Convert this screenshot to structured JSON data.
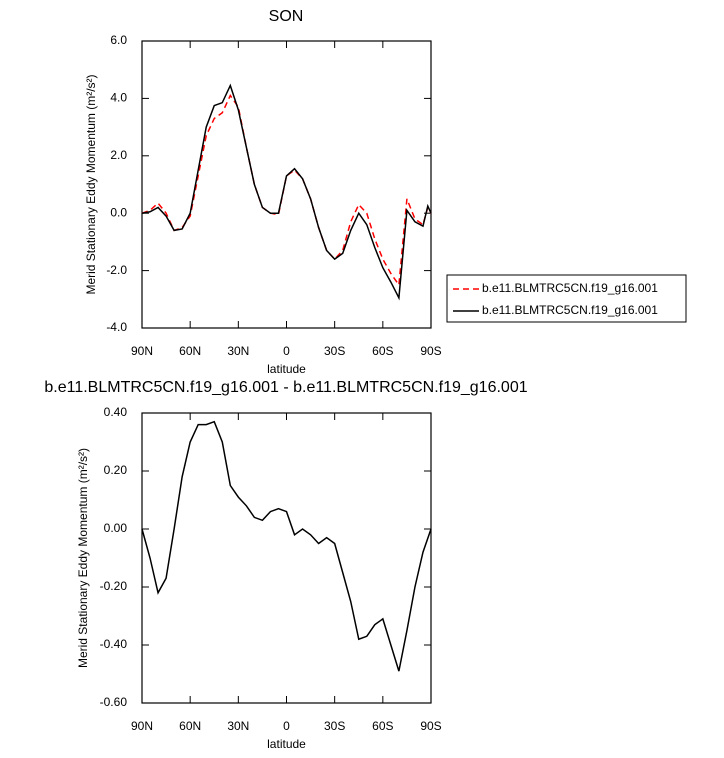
{
  "chart_data": [
    {
      "type": "line",
      "title": "SON",
      "x_label": "latitude",
      "y_label": "Merid Stationary Eddy Momentum (m²/s²)",
      "x": [
        90,
        85,
        80,
        75,
        70,
        65,
        60,
        55,
        50,
        45,
        40,
        35,
        30,
        25,
        20,
        15,
        10,
        5,
        0,
        -5,
        -10,
        -15,
        -20,
        -25,
        -30,
        -35,
        -40,
        -45,
        -50,
        -55,
        -60,
        -65,
        -70,
        -75,
        -80,
        -85,
        -88,
        -90
      ],
      "series": [
        {
          "name": "b.e11.BLMTRC5CN.f19_g16.001",
          "color": "#ff0000",
          "dash": "dashed",
          "values": [
            0,
            0.1,
            0.35,
            0.0,
            -0.6,
            -0.5,
            -0.1,
            1.3,
            2.7,
            3.3,
            3.5,
            4.1,
            3.7,
            2.3,
            1.0,
            0.2,
            0.0,
            -0.05,
            1.3,
            1.5,
            1.2,
            0.5,
            -0.5,
            -1.3,
            -1.6,
            -1.3,
            -0.3,
            0.3,
            0.0,
            -0.9,
            -1.6,
            -2.1,
            -2.5,
            0.5,
            -0.2,
            -0.4,
            0.2,
            0.0
          ]
        },
        {
          "name": "b.e11.BLMTRC5CN.f19_g16.001",
          "color": "#000000",
          "dash": "solid",
          "values": [
            0,
            0.05,
            0.2,
            -0.1,
            -0.6,
            -0.55,
            0.0,
            1.5,
            3.0,
            3.75,
            3.85,
            4.45,
            3.6,
            2.3,
            1.0,
            0.2,
            0.0,
            0.0,
            1.3,
            1.55,
            1.2,
            0.5,
            -0.5,
            -1.3,
            -1.6,
            -1.4,
            -0.6,
            0.0,
            -0.4,
            -1.2,
            -1.9,
            -2.4,
            -2.95,
            0.1,
            -0.3,
            -0.45,
            0.25,
            0.0
          ]
        }
      ],
      "xlim": [
        90,
        -90
      ],
      "xticks": [
        {
          "value": 90,
          "label": "90N"
        },
        {
          "value": 60,
          "label": "60N"
        },
        {
          "value": 30,
          "label": "30N"
        },
        0,
        {
          "value": -30,
          "label": "30S"
        },
        {
          "value": -60,
          "label": "60S"
        },
        {
          "value": -90,
          "label": "90S"
        }
      ],
      "ylim": [
        -4,
        6
      ],
      "yticks": [
        {
          "value": -4,
          "label": "-4.0"
        },
        {
          "value": -2,
          "label": "-2.0"
        },
        {
          "value": 0,
          "label": "0.0"
        },
        {
          "value": 2,
          "label": "2.0"
        },
        {
          "value": 4,
          "label": "4.0"
        },
        {
          "value": 6,
          "label": "6.0"
        }
      ],
      "legend": "right"
    },
    {
      "type": "line",
      "title": "b.e11.BLMTRC5CN.f19_g16.001 - b.e11.BLMTRC5CN.f19_g16.001",
      "x_label": "latitude",
      "y_label": "Merid Stationary Eddy Momentum (m²/s²)",
      "x": [
        90,
        85,
        80,
        75,
        70,
        65,
        60,
        55,
        50,
        45,
        40,
        35,
        30,
        25,
        20,
        15,
        10,
        5,
        0,
        -5,
        -10,
        -15,
        -20,
        -25,
        -30,
        -35,
        -40,
        -45,
        -50,
        -55,
        -60,
        -65,
        -70,
        -75,
        -80,
        -85,
        -90
      ],
      "series": [
        {
          "color": "#000000",
          "dash": "solid",
          "values": [
            0.0,
            -0.1,
            -0.22,
            -0.17,
            0.0,
            0.18,
            0.3,
            0.36,
            0.36,
            0.37,
            0.3,
            0.15,
            0.11,
            0.08,
            0.04,
            0.03,
            0.06,
            0.07,
            0.06,
            -0.02,
            0.0,
            -0.02,
            -0.05,
            -0.03,
            -0.05,
            -0.15,
            -0.25,
            -0.38,
            -0.37,
            -0.33,
            -0.31,
            -0.4,
            -0.49,
            -0.35,
            -0.2,
            -0.08,
            0.0
          ]
        }
      ],
      "xlim": [
        90,
        -90
      ],
      "xticks": [
        {
          "value": 90,
          "label": "90N"
        },
        {
          "value": 60,
          "label": "60N"
        },
        {
          "value": 30,
          "label": "30N"
        },
        0,
        {
          "value": -30,
          "label": "30S"
        },
        {
          "value": -60,
          "label": "60S"
        },
        {
          "value": -90,
          "label": "90S"
        }
      ],
      "ylim": [
        -0.6,
        0.4
      ],
      "yticks": [
        {
          "value": -0.6,
          "label": "-0.60"
        },
        {
          "value": -0.4,
          "label": "-0.40"
        },
        {
          "value": -0.2,
          "label": "-0.20"
        },
        {
          "value": 0,
          "label": "0.00"
        },
        {
          "value": 0.2,
          "label": "0.20"
        },
        {
          "value": 0.4,
          "label": "0.40"
        }
      ]
    }
  ]
}
